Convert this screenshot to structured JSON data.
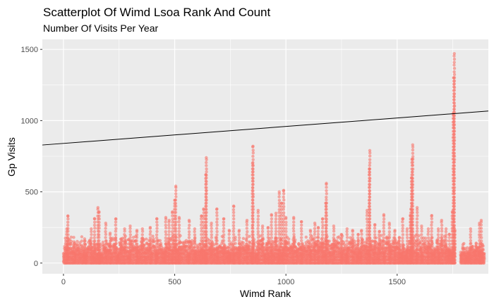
{
  "chart_data": {
    "type": "scatter",
    "title": "Scatterplot Of Wimd Lsoa Rank And Count",
    "subtitle": "Number Of Visits Per Year",
    "xlabel": "Wimd Rank",
    "ylabel": "Gp Visits",
    "xlim": [
      -95,
      1910
    ],
    "ylim": [
      -75,
      1570
    ],
    "x_ticks": [
      0,
      500,
      1000,
      1500
    ],
    "y_ticks": [
      0,
      500,
      1000,
      1500
    ],
    "grid": true,
    "legend": "none",
    "point_color": "#F8766D",
    "trend_line": {
      "color": "#000000",
      "intercept": 840,
      "slope": 0.119
    },
    "bands": [
      [
        0,
        1757,
        0,
        200
      ],
      [
        1785,
        1890,
        0,
        150
      ]
    ],
    "spikes": [
      [
        15,
        240
      ],
      [
        20,
        330
      ],
      [
        50,
        140
      ],
      [
        95,
        170
      ],
      [
        125,
        240
      ],
      [
        140,
        310
      ],
      [
        155,
        390
      ],
      [
        160,
        360
      ],
      [
        190,
        280
      ],
      [
        210,
        210
      ],
      [
        235,
        310
      ],
      [
        260,
        170
      ],
      [
        275,
        240
      ],
      [
        300,
        260
      ],
      [
        330,
        230
      ],
      [
        355,
        240
      ],
      [
        390,
        250
      ],
      [
        420,
        310
      ],
      [
        460,
        320
      ],
      [
        475,
        300
      ],
      [
        490,
        360
      ],
      [
        500,
        440
      ],
      [
        505,
        540
      ],
      [
        520,
        320
      ],
      [
        565,
        300
      ],
      [
        590,
        240
      ],
      [
        620,
        330
      ],
      [
        630,
        380
      ],
      [
        640,
        620
      ],
      [
        642,
        740
      ],
      [
        665,
        280
      ],
      [
        690,
        380
      ],
      [
        720,
        310
      ],
      [
        745,
        230
      ],
      [
        765,
        400
      ],
      [
        790,
        230
      ],
      [
        825,
        300
      ],
      [
        850,
        700
      ],
      [
        852,
        820
      ],
      [
        875,
        370
      ],
      [
        895,
        260
      ],
      [
        920,
        250
      ],
      [
        935,
        340
      ],
      [
        955,
        350
      ],
      [
        970,
        500
      ],
      [
        980,
        420
      ],
      [
        990,
        510
      ],
      [
        1000,
        320
      ],
      [
        1035,
        320
      ],
      [
        1070,
        290
      ],
      [
        1110,
        230
      ],
      [
        1130,
        280
      ],
      [
        1145,
        250
      ],
      [
        1165,
        310
      ],
      [
        1180,
        420
      ],
      [
        1182,
        560
      ],
      [
        1215,
        260
      ],
      [
        1250,
        200
      ],
      [
        1275,
        240
      ],
      [
        1300,
        230
      ],
      [
        1325,
        200
      ],
      [
        1340,
        230
      ],
      [
        1365,
        370
      ],
      [
        1375,
        660
      ],
      [
        1377,
        790
      ],
      [
        1400,
        270
      ],
      [
        1420,
        220
      ],
      [
        1440,
        340
      ],
      [
        1465,
        280
      ],
      [
        1490,
        230
      ],
      [
        1510,
        180
      ],
      [
        1525,
        310
      ],
      [
        1545,
        240
      ],
      [
        1560,
        330
      ],
      [
        1562,
        380
      ],
      [
        1565,
        600
      ],
      [
        1567,
        730
      ],
      [
        1570,
        830
      ],
      [
        1590,
        390
      ],
      [
        1610,
        260
      ],
      [
        1640,
        240
      ],
      [
        1655,
        330
      ],
      [
        1685,
        240
      ],
      [
        1700,
        300
      ],
      [
        1720,
        240
      ],
      [
        1735,
        200
      ],
      [
        1748,
        360
      ],
      [
        1752,
        1050
      ],
      [
        1755,
        1300
      ],
      [
        1757,
        1470
      ],
      [
        1760,
        230
      ],
      [
        1830,
        240
      ],
      [
        1855,
        140
      ],
      [
        1870,
        280
      ],
      [
        1878,
        300
      ]
    ]
  }
}
